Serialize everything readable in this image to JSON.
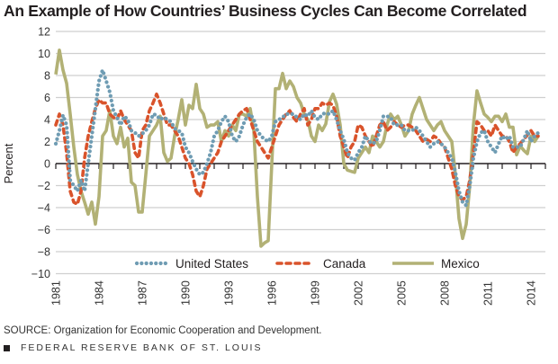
{
  "chart_data": {
    "type": "line",
    "title": "An Example of How Countries’ Business Cycles Can Become Correlated",
    "xlabel": "",
    "ylabel": "Percent",
    "xlim": [
      1981,
      2015
    ],
    "ylim": [
      -10,
      12
    ],
    "yticks": [
      12,
      10,
      8,
      6,
      4,
      2,
      0,
      -2,
      -4,
      -6,
      -8,
      -10
    ],
    "xticks": [
      1981,
      1984,
      1987,
      1990,
      1993,
      1996,
      1999,
      2002,
      2005,
      2008,
      2011,
      2014
    ],
    "grid": true,
    "legend_position": "bottom",
    "series": [
      {
        "name": "United States",
        "style": "dotted",
        "color": "#6f9cb3",
        "x": [
          1981.0,
          1981.25,
          1981.5,
          1981.75,
          1982.0,
          1982.25,
          1982.5,
          1982.75,
          1983.0,
          1983.25,
          1983.5,
          1983.75,
          1984.0,
          1984.25,
          1984.5,
          1984.75,
          1985.0,
          1985.25,
          1985.5,
          1985.75,
          1986.0,
          1986.25,
          1986.5,
          1986.75,
          1987.0,
          1987.25,
          1987.5,
          1987.75,
          1988.0,
          1988.25,
          1988.5,
          1988.75,
          1989.0,
          1989.25,
          1989.5,
          1989.75,
          1990.0,
          1990.25,
          1990.5,
          1990.75,
          1991.0,
          1991.25,
          1991.5,
          1991.75,
          1992.0,
          1992.25,
          1992.5,
          1992.75,
          1993.0,
          1993.25,
          1993.5,
          1993.75,
          1994.0,
          1994.25,
          1994.5,
          1994.75,
          1995.0,
          1995.25,
          1995.5,
          1995.75,
          1996.0,
          1996.25,
          1996.5,
          1996.75,
          1997.0,
          1997.25,
          1997.5,
          1997.75,
          1998.0,
          1998.25,
          1998.5,
          1998.75,
          1999.0,
          1999.25,
          1999.5,
          1999.75,
          2000.0,
          2000.25,
          2000.5,
          2000.75,
          2001.0,
          2001.25,
          2001.5,
          2001.75,
          2002.0,
          2002.25,
          2002.5,
          2002.75,
          2003.0,
          2003.25,
          2003.5,
          2003.75,
          2004.0,
          2004.25,
          2004.5,
          2004.75,
          2005.0,
          2005.25,
          2005.5,
          2005.75,
          2006.0,
          2006.25,
          2006.5,
          2006.75,
          2007.0,
          2007.25,
          2007.5,
          2007.75,
          2008.0,
          2008.25,
          2008.5,
          2008.75,
          2009.0,
          2009.25,
          2009.5,
          2009.75,
          2010.0,
          2010.25,
          2010.5,
          2010.75,
          2011.0,
          2011.25,
          2011.5,
          2011.75,
          2012.0,
          2012.25,
          2012.5,
          2012.75,
          2013.0,
          2013.25,
          2013.5,
          2013.75,
          2014.0,
          2014.25,
          2014.5
        ],
        "values": [
          1.8,
          3.0,
          4.4,
          3.5,
          -1.5,
          -2.0,
          -2.5,
          -1.5,
          -2.5,
          0.0,
          2.5,
          5.0,
          7.5,
          8.5,
          7.5,
          6.5,
          4.8,
          4.2,
          3.5,
          4.3,
          4.0,
          3.0,
          2.8,
          2.5,
          2.7,
          3.0,
          3.5,
          4.5,
          4.4,
          4.0,
          4.2,
          4.0,
          3.8,
          3.2,
          3.0,
          2.8,
          1.5,
          1.0,
          0.2,
          -0.5,
          -1.0,
          -0.8,
          0.0,
          1.0,
          2.5,
          3.0,
          3.8,
          4.3,
          3.8,
          2.5,
          2.0,
          2.5,
          3.5,
          4.2,
          4.5,
          4.0,
          3.0,
          2.5,
          2.2,
          2.0,
          2.5,
          3.8,
          4.0,
          4.2,
          4.5,
          4.5,
          4.5,
          4.2,
          4.0,
          4.5,
          4.3,
          4.8,
          4.2,
          4.0,
          4.5,
          4.6,
          4.5,
          4.8,
          4.0,
          3.0,
          2.2,
          1.0,
          0.5,
          0.3,
          1.0,
          1.5,
          2.5,
          2.0,
          1.8,
          2.0,
          3.0,
          4.3,
          4.3,
          4.2,
          3.5,
          3.5,
          3.5,
          3.0,
          3.0,
          3.0,
          3.3,
          3.0,
          2.5,
          2.0,
          1.5,
          1.8,
          2.0,
          1.8,
          1.5,
          1.0,
          0.5,
          -0.8,
          -2.5,
          -3.5,
          -3.8,
          -2.0,
          0.5,
          2.0,
          2.8,
          3.0,
          2.0,
          1.5,
          1.0,
          1.8,
          2.5,
          2.2,
          2.5,
          1.5,
          1.5,
          1.5,
          2.2,
          3.0,
          2.0,
          2.5,
          2.8
        ]
      },
      {
        "name": "Canada",
        "style": "dashed",
        "color": "#d9532b",
        "x": [
          1981.0,
          1981.25,
          1981.5,
          1981.75,
          1982.0,
          1982.25,
          1982.5,
          1982.75,
          1983.0,
          1983.25,
          1983.5,
          1983.75,
          1984.0,
          1984.25,
          1984.5,
          1984.75,
          1985.0,
          1985.25,
          1985.5,
          1985.75,
          1986.0,
          1986.25,
          1986.5,
          1986.75,
          1987.0,
          1987.25,
          1987.5,
          1987.75,
          1988.0,
          1988.25,
          1988.5,
          1988.75,
          1989.0,
          1989.25,
          1989.5,
          1989.75,
          1990.0,
          1990.25,
          1990.5,
          1990.75,
          1991.0,
          1991.25,
          1991.5,
          1991.75,
          1992.0,
          1992.25,
          1992.5,
          1992.75,
          1993.0,
          1993.25,
          1993.5,
          1993.75,
          1994.0,
          1994.25,
          1994.5,
          1994.75,
          1995.0,
          1995.25,
          1995.5,
          1995.75,
          1996.0,
          1996.25,
          1996.5,
          1996.75,
          1997.0,
          1997.25,
          1997.5,
          1997.75,
          1998.0,
          1998.25,
          1998.5,
          1998.75,
          1999.0,
          1999.25,
          1999.5,
          1999.75,
          2000.0,
          2000.25,
          2000.5,
          2000.75,
          2001.0,
          2001.25,
          2001.5,
          2001.75,
          2002.0,
          2002.25,
          2002.5,
          2002.75,
          2003.0,
          2003.25,
          2003.5,
          2003.75,
          2004.0,
          2004.25,
          2004.5,
          2004.75,
          2005.0,
          2005.25,
          2005.5,
          2005.75,
          2006.0,
          2006.25,
          2006.5,
          2006.75,
          2007.0,
          2007.25,
          2007.5,
          2007.75,
          2008.0,
          2008.25,
          2008.5,
          2008.75,
          2009.0,
          2009.25,
          2009.5,
          2009.75,
          2010.0,
          2010.25,
          2010.5,
          2010.75,
          2011.0,
          2011.25,
          2011.5,
          2011.75,
          2012.0,
          2012.25,
          2012.5,
          2012.75,
          2013.0,
          2013.25,
          2013.5,
          2013.75,
          2014.0,
          2014.25,
          2014.5
        ],
        "values": [
          3.5,
          4.5,
          3.5,
          1.0,
          -2.5,
          -3.5,
          -3.7,
          -2.5,
          0.5,
          2.5,
          3.8,
          5.0,
          5.8,
          5.5,
          5.5,
          4.5,
          4.2,
          4.0,
          4.8,
          4.0,
          3.5,
          3.0,
          1.0,
          0.5,
          3.0,
          3.5,
          4.8,
          5.5,
          6.3,
          5.5,
          4.5,
          3.5,
          3.5,
          3.0,
          2.5,
          1.5,
          0.5,
          0.0,
          -1.0,
          -2.5,
          -3.0,
          -2.0,
          -0.5,
          0.0,
          0.5,
          1.0,
          2.0,
          2.5,
          3.0,
          3.5,
          4.0,
          4.5,
          4.8,
          5.0,
          4.0,
          3.0,
          2.0,
          1.5,
          1.0,
          0.5,
          1.5,
          2.5,
          3.5,
          4.0,
          4.5,
          4.8,
          4.2,
          3.8,
          4.5,
          5.0,
          3.5,
          4.0,
          5.0,
          5.0,
          5.5,
          5.3,
          5.5,
          5.3,
          4.3,
          2.5,
          1.5,
          0.5,
          1.5,
          2.0,
          3.5,
          3.3,
          2.5,
          2.0,
          1.5,
          2.5,
          3.5,
          3.8,
          3.0,
          3.3,
          3.8,
          3.5,
          3.3,
          3.5,
          3.5,
          3.3,
          3.0,
          2.5,
          2.0,
          2.2,
          2.0,
          2.5,
          2.3,
          1.8,
          1.5,
          0.5,
          -0.5,
          -2.0,
          -3.0,
          -3.3,
          -3.0,
          -1.5,
          1.0,
          3.8,
          3.5,
          3.0,
          3.0,
          2.5,
          3.5,
          3.0,
          2.5,
          2.5,
          2.0,
          1.0,
          1.5,
          1.8,
          2.2,
          2.6,
          3.0,
          2.5,
          2.5
        ]
      },
      {
        "name": "Mexico",
        "style": "solid",
        "color": "#b2b175",
        "x": [
          1981.0,
          1981.25,
          1981.5,
          1981.75,
          1982.0,
          1982.25,
          1982.5,
          1982.75,
          1983.0,
          1983.25,
          1983.5,
          1983.75,
          1984.0,
          1984.25,
          1984.5,
          1984.75,
          1985.0,
          1985.25,
          1985.5,
          1985.75,
          1986.0,
          1986.25,
          1986.5,
          1986.75,
          1987.0,
          1987.25,
          1987.5,
          1987.75,
          1988.0,
          1988.25,
          1988.5,
          1988.75,
          1989.0,
          1989.25,
          1989.5,
          1989.75,
          1990.0,
          1990.25,
          1990.5,
          1990.75,
          1991.0,
          1991.25,
          1991.5,
          1991.75,
          1992.0,
          1992.25,
          1992.5,
          1992.75,
          1993.0,
          1993.25,
          1993.5,
          1993.75,
          1994.0,
          1994.25,
          1994.5,
          1994.75,
          1995.0,
          1995.25,
          1995.5,
          1995.75,
          1996.0,
          1996.25,
          1996.5,
          1996.75,
          1997.0,
          1997.25,
          1997.5,
          1997.75,
          1998.0,
          1998.25,
          1998.5,
          1998.75,
          1999.0,
          1999.25,
          1999.5,
          1999.75,
          2000.0,
          2000.25,
          2000.5,
          2000.75,
          2001.0,
          2001.25,
          2001.5,
          2001.75,
          2002.0,
          2002.25,
          2002.5,
          2002.75,
          2003.0,
          2003.25,
          2003.5,
          2003.75,
          2004.0,
          2004.25,
          2004.5,
          2004.75,
          2005.0,
          2005.25,
          2005.5,
          2005.75,
          2006.0,
          2006.25,
          2006.5,
          2006.75,
          2007.0,
          2007.25,
          2007.5,
          2007.75,
          2008.0,
          2008.25,
          2008.5,
          2008.75,
          2009.0,
          2009.25,
          2009.5,
          2009.75,
          2010.0,
          2010.25,
          2010.5,
          2010.75,
          2011.0,
          2011.25,
          2011.5,
          2011.75,
          2012.0,
          2012.25,
          2012.5,
          2012.75,
          2013.0,
          2013.25,
          2013.5,
          2013.75,
          2014.0,
          2014.25,
          2014.5
        ],
        "values": [
          8.1,
          10.3,
          8.5,
          7.3,
          4.5,
          1.5,
          -1.0,
          -2.5,
          -3.5,
          -4.6,
          -3.5,
          -5.5,
          -3.0,
          2.5,
          3.0,
          4.8,
          2.5,
          1.8,
          3.3,
          1.5,
          2.3,
          -1.7,
          -2.0,
          -4.4,
          -4.4,
          -1.0,
          2.5,
          3.0,
          3.5,
          4.3,
          1.0,
          0.2,
          0.5,
          2.5,
          4.0,
          5.8,
          3.5,
          5.3,
          5.0,
          7.2,
          5.0,
          4.5,
          3.3,
          3.5,
          3.5,
          3.8,
          2.0,
          3.0,
          2.5,
          3.5,
          3.0,
          4.5,
          4.5,
          4.3,
          5.0,
          3.0,
          -3.0,
          -7.5,
          -7.2,
          -7.0,
          0.0,
          6.8,
          6.8,
          8.2,
          6.8,
          7.5,
          7.0,
          6.0,
          5.5,
          4.5,
          4.0,
          2.5,
          2.0,
          3.5,
          3.0,
          3.6,
          5.6,
          6.3,
          5.4,
          3.5,
          0.0,
          -0.6,
          -0.7,
          -0.8,
          0.5,
          1.0,
          1.5,
          1.0,
          2.5,
          2.0,
          1.5,
          2.0,
          3.5,
          4.5,
          4.0,
          4.3,
          3.5,
          2.5,
          3.0,
          4.5,
          5.3,
          6.0,
          5.0,
          4.0,
          3.5,
          3.0,
          3.5,
          3.8,
          3.0,
          2.5,
          2.0,
          -1.0,
          -5.0,
          -6.8,
          -5.5,
          -2.0,
          3.5,
          6.6,
          5.5,
          4.5,
          4.2,
          3.8,
          4.3,
          4.3,
          3.8,
          4.5,
          3.3,
          3.3,
          0.8,
          1.6,
          1.2,
          0.9,
          2.5,
          2.0,
          2.5
        ]
      }
    ]
  },
  "header": {
    "title": "An Example of How Countries’ Business Cycles Can Become Correlated"
  },
  "footer": {
    "source": "SOURCE: Organization for Economic Cooperation and Development.",
    "publisher": "FEDERAL RESERVE BANK OF ST. LOUIS"
  }
}
